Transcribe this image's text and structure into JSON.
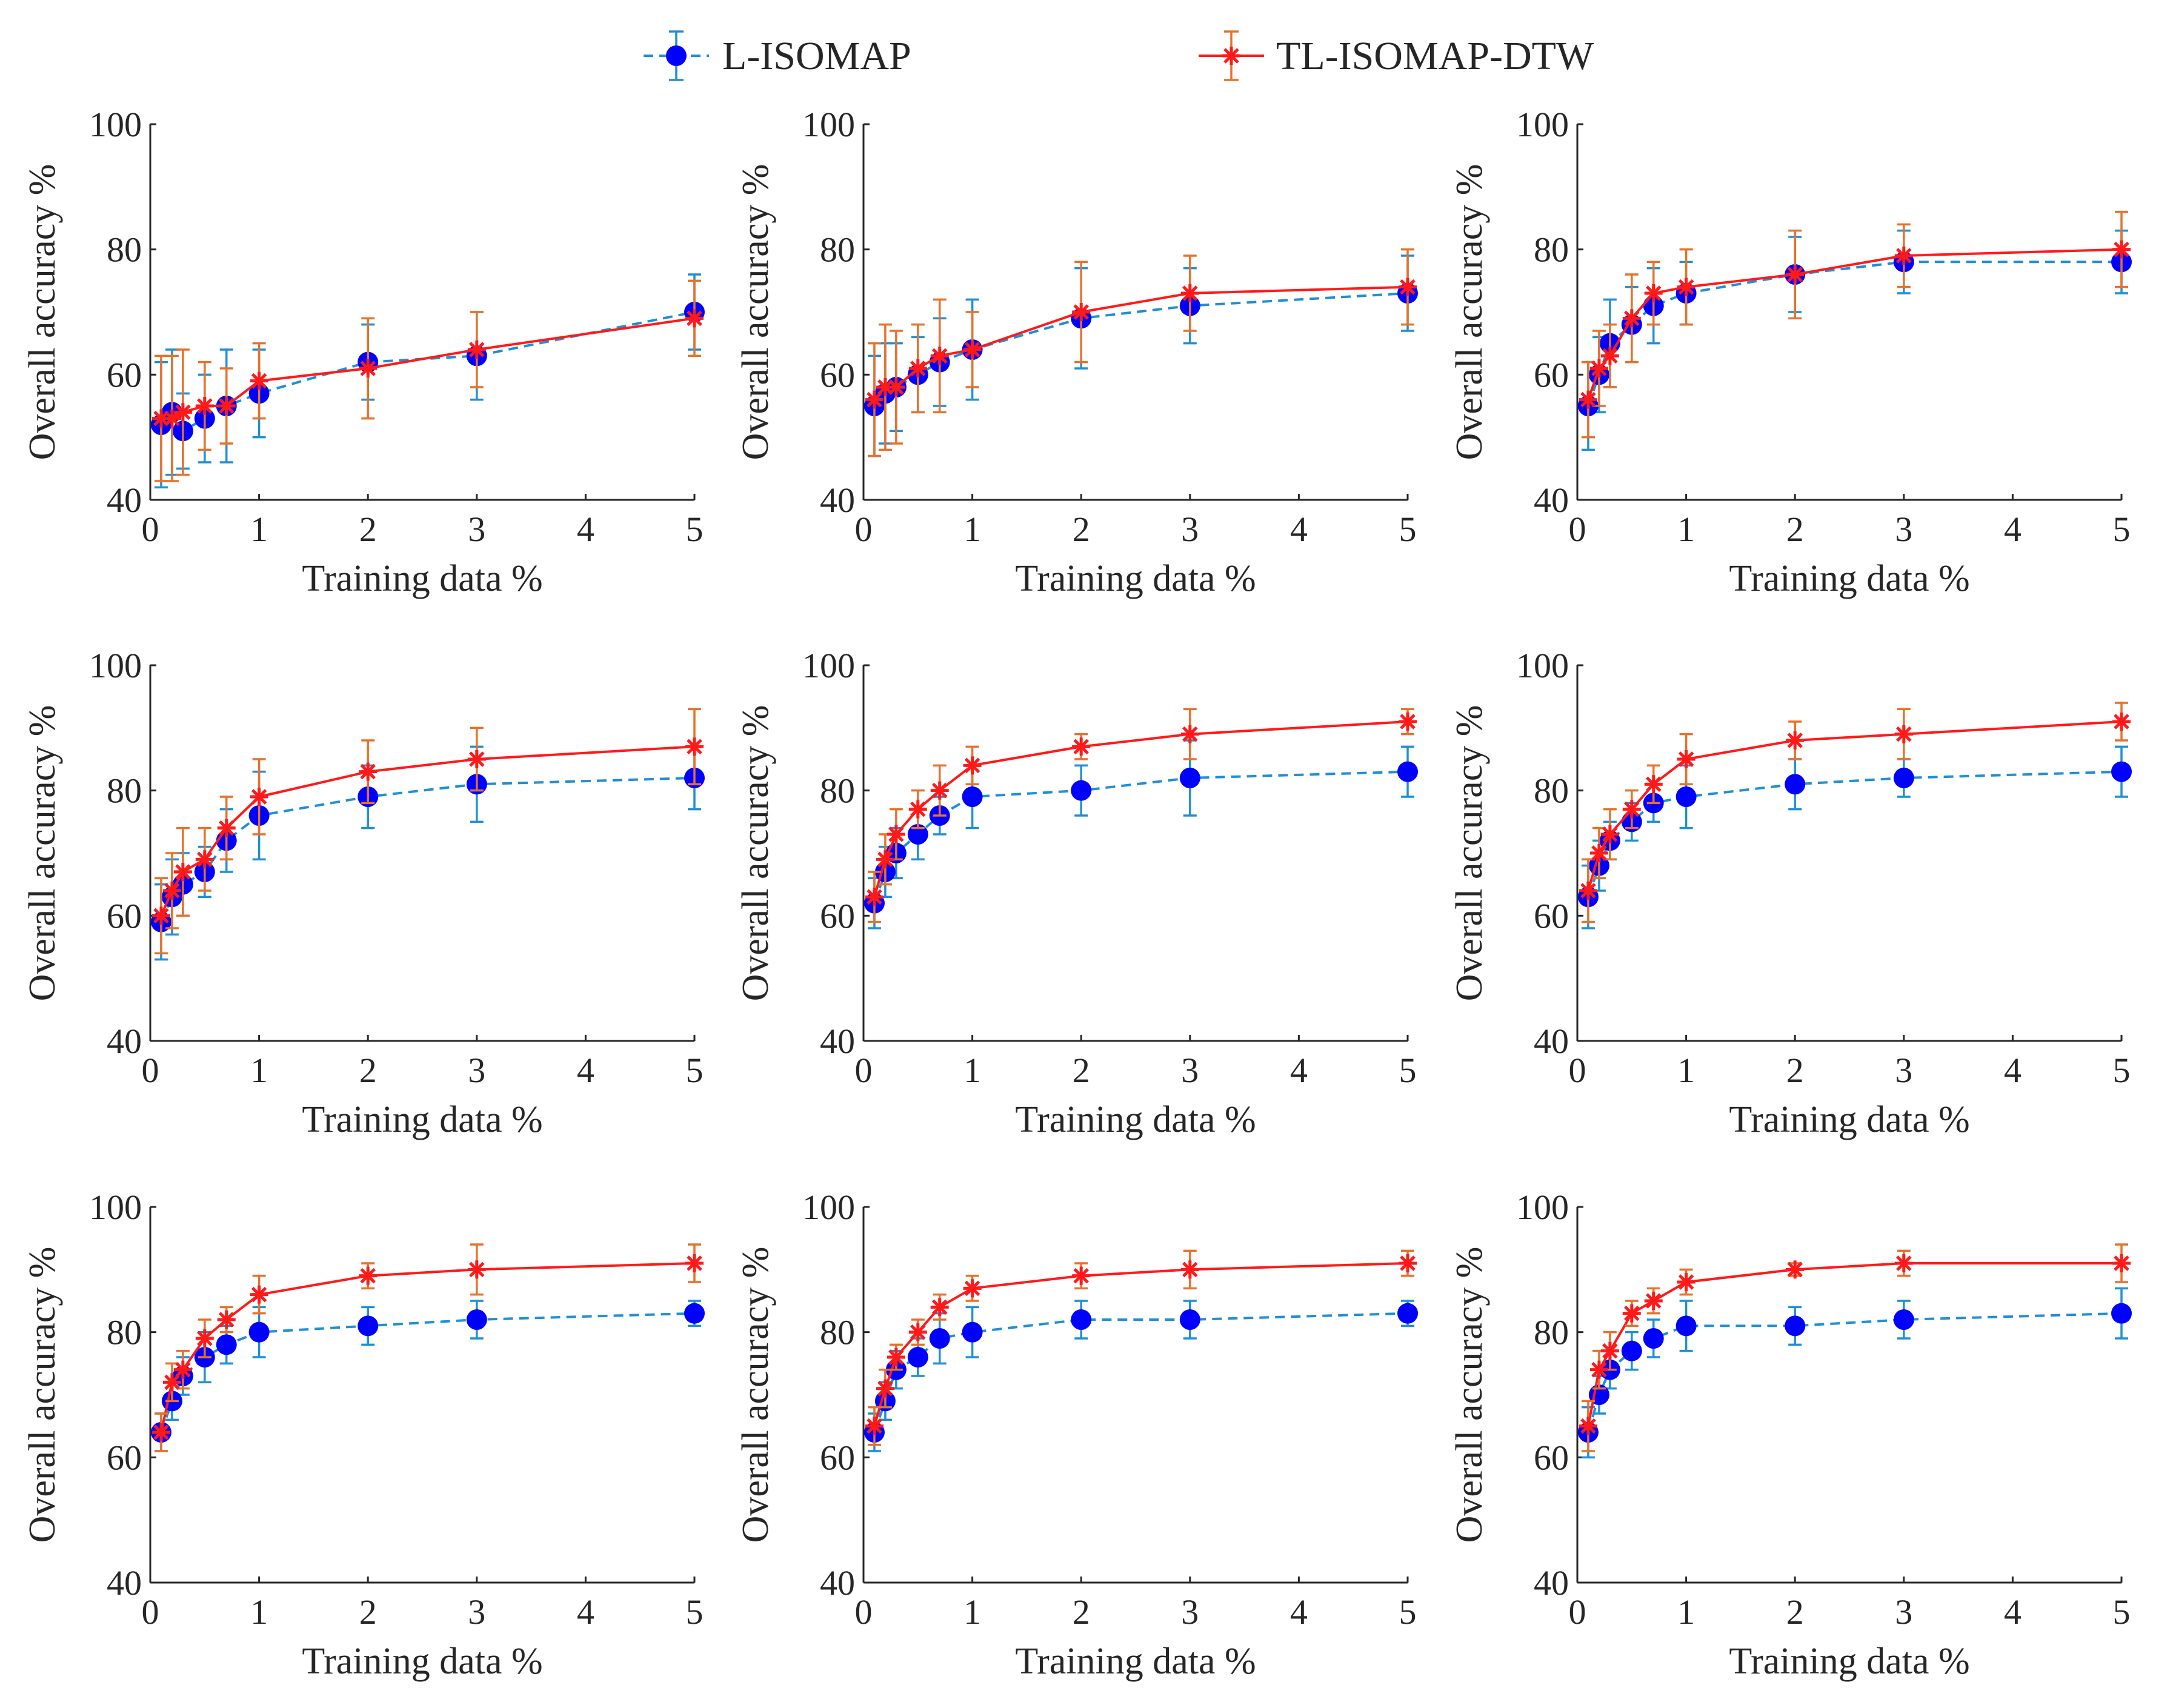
{
  "legend": {
    "entries": [
      {
        "label": "L-ISOMAP",
        "color": "#0000ff",
        "error_color": "#1f8fd6",
        "line_style": "dashed",
        "marker": "circle"
      },
      {
        "label": "TL-ISOMAP-DTW",
        "color": "#ff1a1a",
        "error_color": "#e8712a",
        "line_style": "solid",
        "marker": "asterisk"
      }
    ]
  },
  "chart_data": [
    {
      "type": "line",
      "xlabel": "Training data %",
      "ylabel": "Overall accuracy %",
      "xlim": [
        0,
        5
      ],
      "ylim": [
        40,
        100
      ],
      "xticks": [
        0,
        1,
        2,
        3,
        4,
        5
      ],
      "yticks": [
        40,
        60,
        80,
        100
      ],
      "x": [
        0.1,
        0.2,
        0.3,
        0.5,
        0.7,
        1,
        2,
        3,
        5
      ],
      "series": [
        {
          "name": "L-ISOMAP",
          "values": [
            52,
            54,
            51,
            53,
            55,
            57,
            62,
            63,
            70
          ],
          "error": [
            10,
            10,
            6,
            7,
            9,
            7,
            6,
            7,
            6
          ]
        },
        {
          "name": "TL-ISOMAP-DTW",
          "values": [
            53,
            53,
            54,
            55,
            55,
            59,
            61,
            64,
            69
          ],
          "error": [
            10,
            10,
            10,
            7,
            6,
            6,
            8,
            6,
            6
          ]
        }
      ]
    },
    {
      "type": "line",
      "xlabel": "Training data %",
      "ylabel": "Overall accuracy %",
      "xlim": [
        0,
        5
      ],
      "ylim": [
        40,
        100
      ],
      "xticks": [
        0,
        1,
        2,
        3,
        4,
        5
      ],
      "yticks": [
        40,
        60,
        80,
        100
      ],
      "x": [
        0.1,
        0.2,
        0.3,
        0.5,
        0.7,
        1,
        2,
        3,
        5
      ],
      "series": [
        {
          "name": "L-ISOMAP",
          "values": [
            55,
            57,
            58,
            60,
            62,
            64,
            69,
            71,
            73
          ],
          "error": [
            8,
            8,
            7,
            6,
            7,
            8,
            8,
            6,
            6
          ]
        },
        {
          "name": "TL-ISOMAP-DTW",
          "values": [
            56,
            58,
            58,
            61,
            63,
            64,
            70,
            73,
            74
          ],
          "error": [
            9,
            10,
            9,
            7,
            9,
            6,
            8,
            6,
            6
          ]
        }
      ]
    },
    {
      "type": "line",
      "xlabel": "Training data %",
      "ylabel": "Overall accuracy %",
      "xlim": [
        0,
        5
      ],
      "ylim": [
        40,
        100
      ],
      "xticks": [
        0,
        1,
        2,
        3,
        4,
        5
      ],
      "yticks": [
        40,
        60,
        80,
        100
      ],
      "x": [
        0.1,
        0.2,
        0.3,
        0.5,
        0.7,
        1,
        2,
        3,
        5
      ],
      "series": [
        {
          "name": "L-ISOMAP",
          "values": [
            55,
            60,
            65,
            68,
            71,
            73,
            76,
            78,
            78
          ],
          "error": [
            7,
            6,
            7,
            6,
            6,
            5,
            6,
            5,
            5
          ]
        },
        {
          "name": "TL-ISOMAP-DTW",
          "values": [
            56,
            61,
            63,
            69,
            73,
            74,
            76,
            79,
            80
          ],
          "error": [
            6,
            6,
            5,
            7,
            5,
            6,
            7,
            5,
            6
          ]
        }
      ]
    },
    {
      "type": "line",
      "xlabel": "Training data %",
      "ylabel": "Overall accuracy %",
      "xlim": [
        0,
        5
      ],
      "ylim": [
        40,
        100
      ],
      "xticks": [
        0,
        1,
        2,
        3,
        4,
        5
      ],
      "yticks": [
        40,
        60,
        80,
        100
      ],
      "x": [
        0.1,
        0.2,
        0.3,
        0.5,
        0.7,
        1,
        2,
        3,
        5
      ],
      "series": [
        {
          "name": "L-ISOMAP",
          "values": [
            59,
            63,
            65,
            67,
            72,
            76,
            79,
            81,
            82
          ],
          "error": [
            6,
            6,
            5,
            4,
            5,
            7,
            5,
            6,
            5
          ]
        },
        {
          "name": "TL-ISOMAP-DTW",
          "values": [
            60,
            64,
            67,
            69,
            74,
            79,
            83,
            85,
            87
          ],
          "error": [
            6,
            6,
            7,
            5,
            5,
            6,
            5,
            5,
            6
          ]
        }
      ]
    },
    {
      "type": "line",
      "xlabel": "Training data %",
      "ylabel": "Overall accuracy %",
      "xlim": [
        0,
        5
      ],
      "ylim": [
        40,
        100
      ],
      "xticks": [
        0,
        1,
        2,
        3,
        4,
        5
      ],
      "yticks": [
        40,
        60,
        80,
        100
      ],
      "x": [
        0.1,
        0.2,
        0.3,
        0.5,
        0.7,
        1,
        2,
        3,
        5
      ],
      "series": [
        {
          "name": "L-ISOMAP",
          "values": [
            62,
            67,
            70,
            73,
            76,
            79,
            80,
            82,
            83
          ],
          "error": [
            4,
            4,
            4,
            4,
            3,
            5,
            4,
            6,
            4
          ]
        },
        {
          "name": "TL-ISOMAP-DTW",
          "values": [
            63,
            69,
            73,
            77,
            80,
            84,
            87,
            89,
            91
          ],
          "error": [
            4,
            4,
            4,
            3,
            4,
            3,
            2,
            4,
            2
          ]
        }
      ]
    },
    {
      "type": "line",
      "xlabel": "Training data %",
      "ylabel": "Overall accuracy %",
      "xlim": [
        0,
        5
      ],
      "ylim": [
        40,
        100
      ],
      "xticks": [
        0,
        1,
        2,
        3,
        4,
        5
      ],
      "yticks": [
        40,
        60,
        80,
        100
      ],
      "x": [
        0.1,
        0.2,
        0.3,
        0.5,
        0.7,
        1,
        2,
        3,
        5
      ],
      "series": [
        {
          "name": "L-ISOMAP",
          "values": [
            63,
            68,
            72,
            75,
            78,
            79,
            81,
            82,
            83
          ],
          "error": [
            5,
            4,
            3,
            3,
            3,
            5,
            4,
            3,
            4
          ]
        },
        {
          "name": "TL-ISOMAP-DTW",
          "values": [
            64,
            70,
            73,
            77,
            81,
            85,
            88,
            89,
            91
          ],
          "error": [
            5,
            4,
            4,
            3,
            3,
            4,
            3,
            4,
            3
          ]
        }
      ]
    },
    {
      "type": "line",
      "xlabel": "Training data %",
      "ylabel": "Overall accuracy %",
      "xlim": [
        0,
        5
      ],
      "ylim": [
        40,
        100
      ],
      "xticks": [
        0,
        1,
        2,
        3,
        4,
        5
      ],
      "yticks": [
        40,
        60,
        80,
        100
      ],
      "x": [
        0.1,
        0.2,
        0.3,
        0.5,
        0.7,
        1,
        2,
        3,
        5
      ],
      "series": [
        {
          "name": "L-ISOMAP",
          "values": [
            64,
            69,
            73,
            76,
            78,
            80,
            81,
            82,
            83
          ],
          "error": [
            3,
            3,
            3,
            4,
            3,
            4,
            3,
            3,
            2
          ]
        },
        {
          "name": "TL-ISOMAP-DTW",
          "values": [
            64,
            72,
            74,
            79,
            82,
            86,
            89,
            90,
            91
          ],
          "error": [
            3,
            3,
            3,
            3,
            2,
            3,
            2,
            4,
            3
          ]
        }
      ]
    },
    {
      "type": "line",
      "xlabel": "Training data %",
      "ylabel": "Overall accuracy %",
      "xlim": [
        0,
        5
      ],
      "ylim": [
        40,
        100
      ],
      "xticks": [
        0,
        1,
        2,
        3,
        4,
        5
      ],
      "yticks": [
        40,
        60,
        80,
        100
      ],
      "x": [
        0.1,
        0.2,
        0.3,
        0.5,
        0.7,
        1,
        2,
        3,
        5
      ],
      "series": [
        {
          "name": "L-ISOMAP",
          "values": [
            64,
            69,
            74,
            76,
            79,
            80,
            82,
            82,
            83
          ],
          "error": [
            3,
            3,
            3,
            3,
            4,
            4,
            3,
            3,
            2
          ]
        },
        {
          "name": "TL-ISOMAP-DTW",
          "values": [
            65,
            71,
            76,
            80,
            84,
            87,
            89,
            90,
            91
          ],
          "error": [
            3,
            3,
            2,
            2,
            2,
            2,
            2,
            3,
            2
          ]
        }
      ]
    },
    {
      "type": "line",
      "xlabel": "Training data %",
      "ylabel": "Overall accuracy %",
      "xlim": [
        0,
        5
      ],
      "ylim": [
        40,
        100
      ],
      "xticks": [
        0,
        1,
        2,
        3,
        4,
        5
      ],
      "yticks": [
        40,
        60,
        80,
        100
      ],
      "x": [
        0.1,
        0.2,
        0.3,
        0.5,
        0.7,
        1,
        2,
        3,
        5
      ],
      "series": [
        {
          "name": "L-ISOMAP",
          "values": [
            64,
            70,
            74,
            77,
            79,
            81,
            81,
            82,
            83
          ],
          "error": [
            4,
            3,
            3,
            3,
            3,
            4,
            3,
            3,
            4
          ]
        },
        {
          "name": "TL-ISOMAP-DTW",
          "values": [
            65,
            74,
            77,
            83,
            85,
            88,
            90,
            91,
            91
          ],
          "error": [
            4,
            3,
            3,
            2,
            2,
            2,
            1,
            2,
            3
          ]
        }
      ]
    }
  ]
}
